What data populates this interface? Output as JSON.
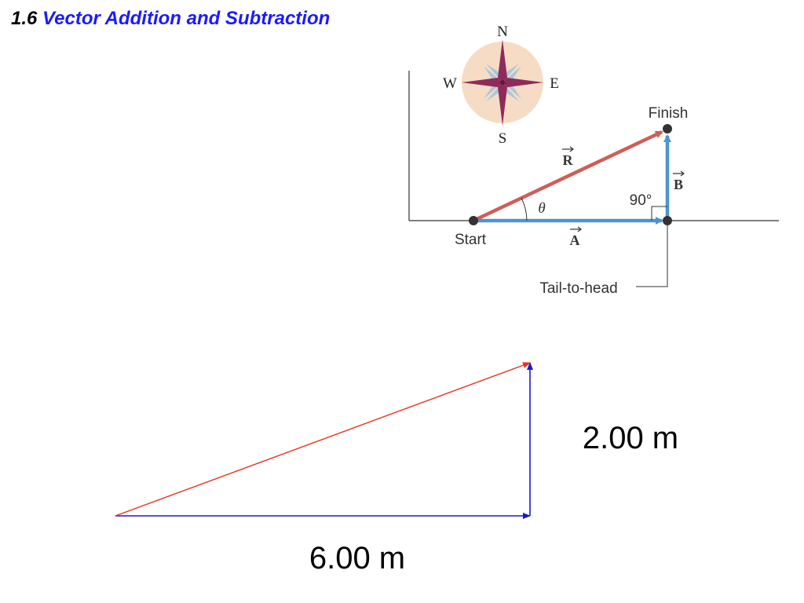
{
  "title": {
    "section": "1.6",
    "text": "Vector Addition and Subtraction"
  },
  "figure": {
    "compass": {
      "n": "N",
      "s": "S",
      "e": "E",
      "w": "W"
    },
    "labels": {
      "finish": "Finish",
      "start": "Start",
      "vector_r": "R",
      "vector_a": "A",
      "vector_b": "B",
      "angle": "θ",
      "right_angle": "90°",
      "tail_to_head": "Tail-to-head"
    },
    "colors": {
      "resultant": "#cf5e58",
      "component": "#4f94cf",
      "compass_bg": "#f6dcc4",
      "compass_star": "#8e2a5c",
      "compass_star_light": "#a9c7df"
    }
  },
  "sketch": {
    "horizontal_label": "6.00 m",
    "vertical_label": "2.00 m",
    "colors": {
      "resultant": "#e8331a",
      "legs": "#1a1acc"
    }
  }
}
